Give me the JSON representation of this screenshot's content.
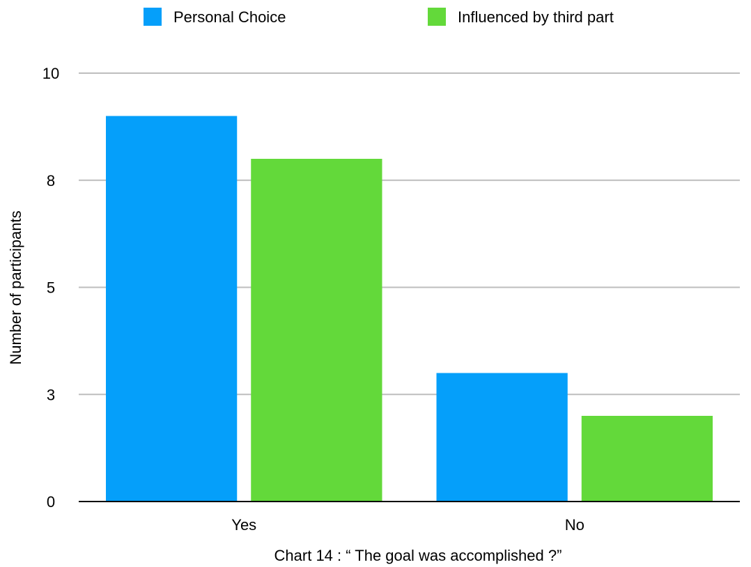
{
  "chart_data": {
    "type": "bar",
    "title": "Chart 14 : “ The goal was accomplished ?”",
    "xlabel": "",
    "ylabel": "Number of participants",
    "categories": [
      "Yes",
      "No"
    ],
    "series": [
      {
        "name": "Personal Choice",
        "values": [
          9,
          3
        ],
        "color": "#059FFA"
      },
      {
        "name": "Influenced by third part",
        "values": [
          8,
          2
        ],
        "color": "#63D93A"
      }
    ],
    "ylim": [
      0,
      10
    ],
    "yticks": [
      {
        "value": 0,
        "label": "0"
      },
      {
        "value": 2.5,
        "label": "3"
      },
      {
        "value": 5,
        "label": "5"
      },
      {
        "value": 7.5,
        "label": "8"
      },
      {
        "value": 10,
        "label": "10"
      }
    ],
    "grid": true,
    "legend_position": "top-center"
  }
}
